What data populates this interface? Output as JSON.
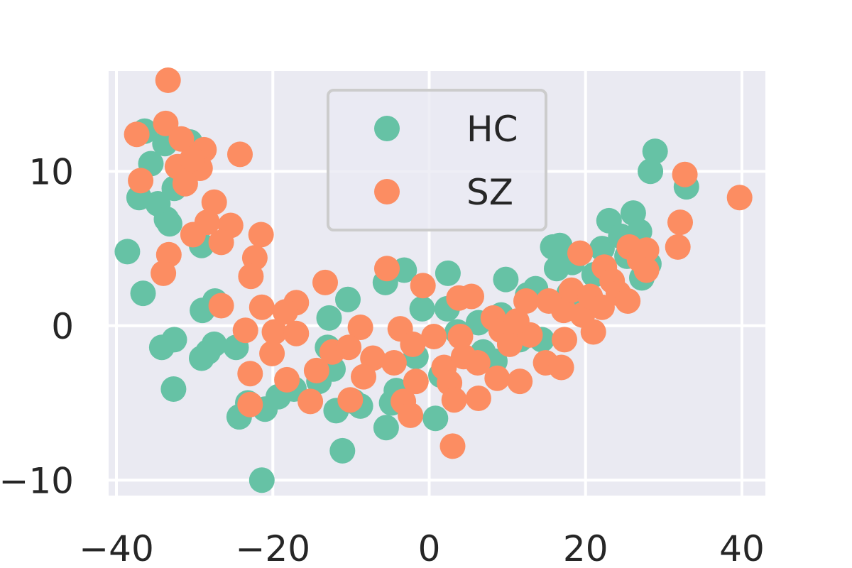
{
  "chart_data": {
    "type": "scatter",
    "title": "",
    "xlabel": "",
    "ylabel": "",
    "xlim": [
      -41,
      43
    ],
    "ylim": [
      -11,
      16.5
    ],
    "xticks": [
      -40,
      -20,
      0,
      20,
      40
    ],
    "yticks": [
      -10,
      0,
      10
    ],
    "xtick_labels": [
      "−40",
      "−20",
      "0",
      "20",
      "40"
    ],
    "ytick_labels": [
      "−10",
      "0",
      "10"
    ],
    "grid": true,
    "legend_position": "top-center",
    "series": [
      {
        "name": "HC",
        "color": "#66c2a5",
        "points": [
          [
            -36.4,
            12.6
          ],
          [
            -35.6,
            10.5
          ],
          [
            -33.8,
            11.8
          ],
          [
            -30.6,
            11.9
          ],
          [
            -32.6,
            8.9
          ],
          [
            -37.1,
            8.3
          ],
          [
            -34.7,
            7.9
          ],
          [
            -33.6,
            6.9
          ],
          [
            -33.2,
            6.6
          ],
          [
            -38.6,
            4.8
          ],
          [
            -29.1,
            5.2
          ],
          [
            -36.6,
            2.1
          ],
          [
            -29.0,
            1.0
          ],
          [
            -27.4,
            1.6
          ],
          [
            -32.6,
            -0.9
          ],
          [
            -34.2,
            -1.4
          ],
          [
            -32.7,
            -4.1
          ],
          [
            -27.5,
            -1.2
          ],
          [
            -28.3,
            -1.7
          ],
          [
            -29.1,
            -2.1
          ],
          [
            -24.7,
            -1.4
          ],
          [
            -23.2,
            -5.0
          ],
          [
            -24.3,
            -5.9
          ],
          [
            -21.0,
            -5.4
          ],
          [
            -21.4,
            -10.0
          ],
          [
            -19.3,
            -4.6
          ],
          [
            -17.3,
            -4.1
          ],
          [
            -14.1,
            -3.6
          ],
          [
            -13.0,
            -1.4
          ],
          [
            -12.8,
            0.5
          ],
          [
            -10.4,
            1.7
          ],
          [
            -12.3,
            -2.8
          ],
          [
            -11.9,
            -5.5
          ],
          [
            -9.7,
            -4.9
          ],
          [
            -8.8,
            -5.2
          ],
          [
            -11.1,
            -8.1
          ],
          [
            -5.6,
            2.8
          ],
          [
            -3.2,
            3.6
          ],
          [
            -4.8,
            -5.0
          ],
          [
            -5.5,
            -6.6
          ],
          [
            -4.2,
            -4.2
          ],
          [
            -0.9,
            1.1
          ],
          [
            -1.7,
            -2.0
          ],
          [
            0.8,
            -6.0
          ],
          [
            2.4,
            3.4
          ],
          [
            2.3,
            1.1
          ],
          [
            3.6,
            -0.4
          ],
          [
            1.5,
            -3.2
          ],
          [
            6.3,
            0.2
          ],
          [
            6.9,
            -1.7
          ],
          [
            9.2,
            0.7
          ],
          [
            9.8,
            3.0
          ],
          [
            8.4,
            -2.3
          ],
          [
            11.6,
            -0.9
          ],
          [
            12.6,
            2.0
          ],
          [
            13.6,
            2.4
          ],
          [
            15.8,
            5.1
          ],
          [
            16.7,
            5.2
          ],
          [
            16.3,
            3.7
          ],
          [
            18.3,
            4.1
          ],
          [
            17.9,
            2.1
          ],
          [
            19.7,
            1.2
          ],
          [
            21.1,
            3.3
          ],
          [
            22.1,
            5.0
          ],
          [
            23.0,
            6.8
          ],
          [
            24.5,
            5.8
          ],
          [
            26.1,
            7.3
          ],
          [
            26.9,
            6.1
          ],
          [
            25.3,
            4.5
          ],
          [
            27.2,
            3.1
          ],
          [
            28.1,
            4.0
          ],
          [
            28.9,
            11.3
          ],
          [
            28.3,
            10.0
          ],
          [
            32.9,
            9.0
          ],
          [
            14.4,
            -0.9
          ]
        ]
      },
      {
        "name": "SZ",
        "color": "#fc8d62",
        "points": [
          [
            -33.4,
            15.9
          ],
          [
            -37.4,
            12.4
          ],
          [
            -33.7,
            13.1
          ],
          [
            -31.7,
            12.1
          ],
          [
            -28.8,
            11.4
          ],
          [
            -24.2,
            11.1
          ],
          [
            -32.2,
            10.3
          ],
          [
            -29.3,
            10.2
          ],
          [
            -30.3,
            10.8
          ],
          [
            -31.2,
            9.2
          ],
          [
            -36.9,
            9.4
          ],
          [
            -27.5,
            8.0
          ],
          [
            -25.4,
            6.5
          ],
          [
            -28.4,
            6.7
          ],
          [
            -30.2,
            5.9
          ],
          [
            -26.6,
            5.4
          ],
          [
            -21.5,
            5.9
          ],
          [
            -22.3,
            4.4
          ],
          [
            -33.3,
            4.6
          ],
          [
            -34.0,
            3.4
          ],
          [
            -22.8,
            3.2
          ],
          [
            -26.6,
            1.3
          ],
          [
            -21.4,
            1.2
          ],
          [
            -17.0,
            1.5
          ],
          [
            -18.4,
            0.9
          ],
          [
            -23.5,
            -0.3
          ],
          [
            -19.8,
            -0.4
          ],
          [
            -17.0,
            -0.5
          ],
          [
            -20.1,
            -1.8
          ],
          [
            -22.9,
            -3.1
          ],
          [
            -18.2,
            -3.5
          ],
          [
            -14.4,
            -2.9
          ],
          [
            -12.4,
            -1.7
          ],
          [
            -15.2,
            -4.9
          ],
          [
            -10.1,
            -4.8
          ],
          [
            -22.9,
            -5.1
          ],
          [
            -13.3,
            2.8
          ],
          [
            -8.8,
            -0.1
          ],
          [
            -10.3,
            -1.4
          ],
          [
            -7.2,
            -2.1
          ],
          [
            -8.4,
            -3.3
          ],
          [
            -5.4,
            3.7
          ],
          [
            -3.7,
            -0.2
          ],
          [
            -4.5,
            -2.4
          ],
          [
            -2.1,
            -1.2
          ],
          [
            -1.7,
            -3.6
          ],
          [
            -3.3,
            -4.9
          ],
          [
            -2.4,
            -5.8
          ],
          [
            -0.8,
            2.6
          ],
          [
            0.6,
            -0.7
          ],
          [
            1.9,
            -2.7
          ],
          [
            2.6,
            -3.7
          ],
          [
            3.8,
            1.8
          ],
          [
            5.4,
            1.9
          ],
          [
            4.0,
            -0.7
          ],
          [
            3.2,
            -4.8
          ],
          [
            4.4,
            -2.0
          ],
          [
            6.2,
            -2.4
          ],
          [
            6.3,
            -4.7
          ],
          [
            3.0,
            -7.8
          ],
          [
            8.2,
            0.5
          ],
          [
            9.2,
            -0.3
          ],
          [
            8.7,
            -3.4
          ],
          [
            11.6,
            -3.6
          ],
          [
            10.3,
            -1.2
          ],
          [
            12.9,
            -0.6
          ],
          [
            11.2,
            0.3
          ],
          [
            12.4,
            1.6
          ],
          [
            14.9,
            -2.4
          ],
          [
            16.9,
            -2.7
          ],
          [
            15.3,
            1.6
          ],
          [
            17.2,
            1.0
          ],
          [
            17.3,
            -0.9
          ],
          [
            18.2,
            2.3
          ],
          [
            19.3,
            4.7
          ],
          [
            19.6,
            0.7
          ],
          [
            20.6,
            1.9
          ],
          [
            21.0,
            -0.4
          ],
          [
            22.4,
            3.8
          ],
          [
            22.1,
            1.2
          ],
          [
            23.4,
            2.9
          ],
          [
            24.2,
            2.1
          ],
          [
            25.4,
            1.6
          ],
          [
            25.6,
            5.1
          ],
          [
            26.9,
            4.3
          ],
          [
            27.8,
            4.9
          ],
          [
            27.8,
            3.6
          ],
          [
            31.8,
            5.1
          ],
          [
            32.1,
            6.7
          ],
          [
            32.7,
            9.8
          ],
          [
            39.7,
            8.3
          ]
        ]
      }
    ]
  }
}
